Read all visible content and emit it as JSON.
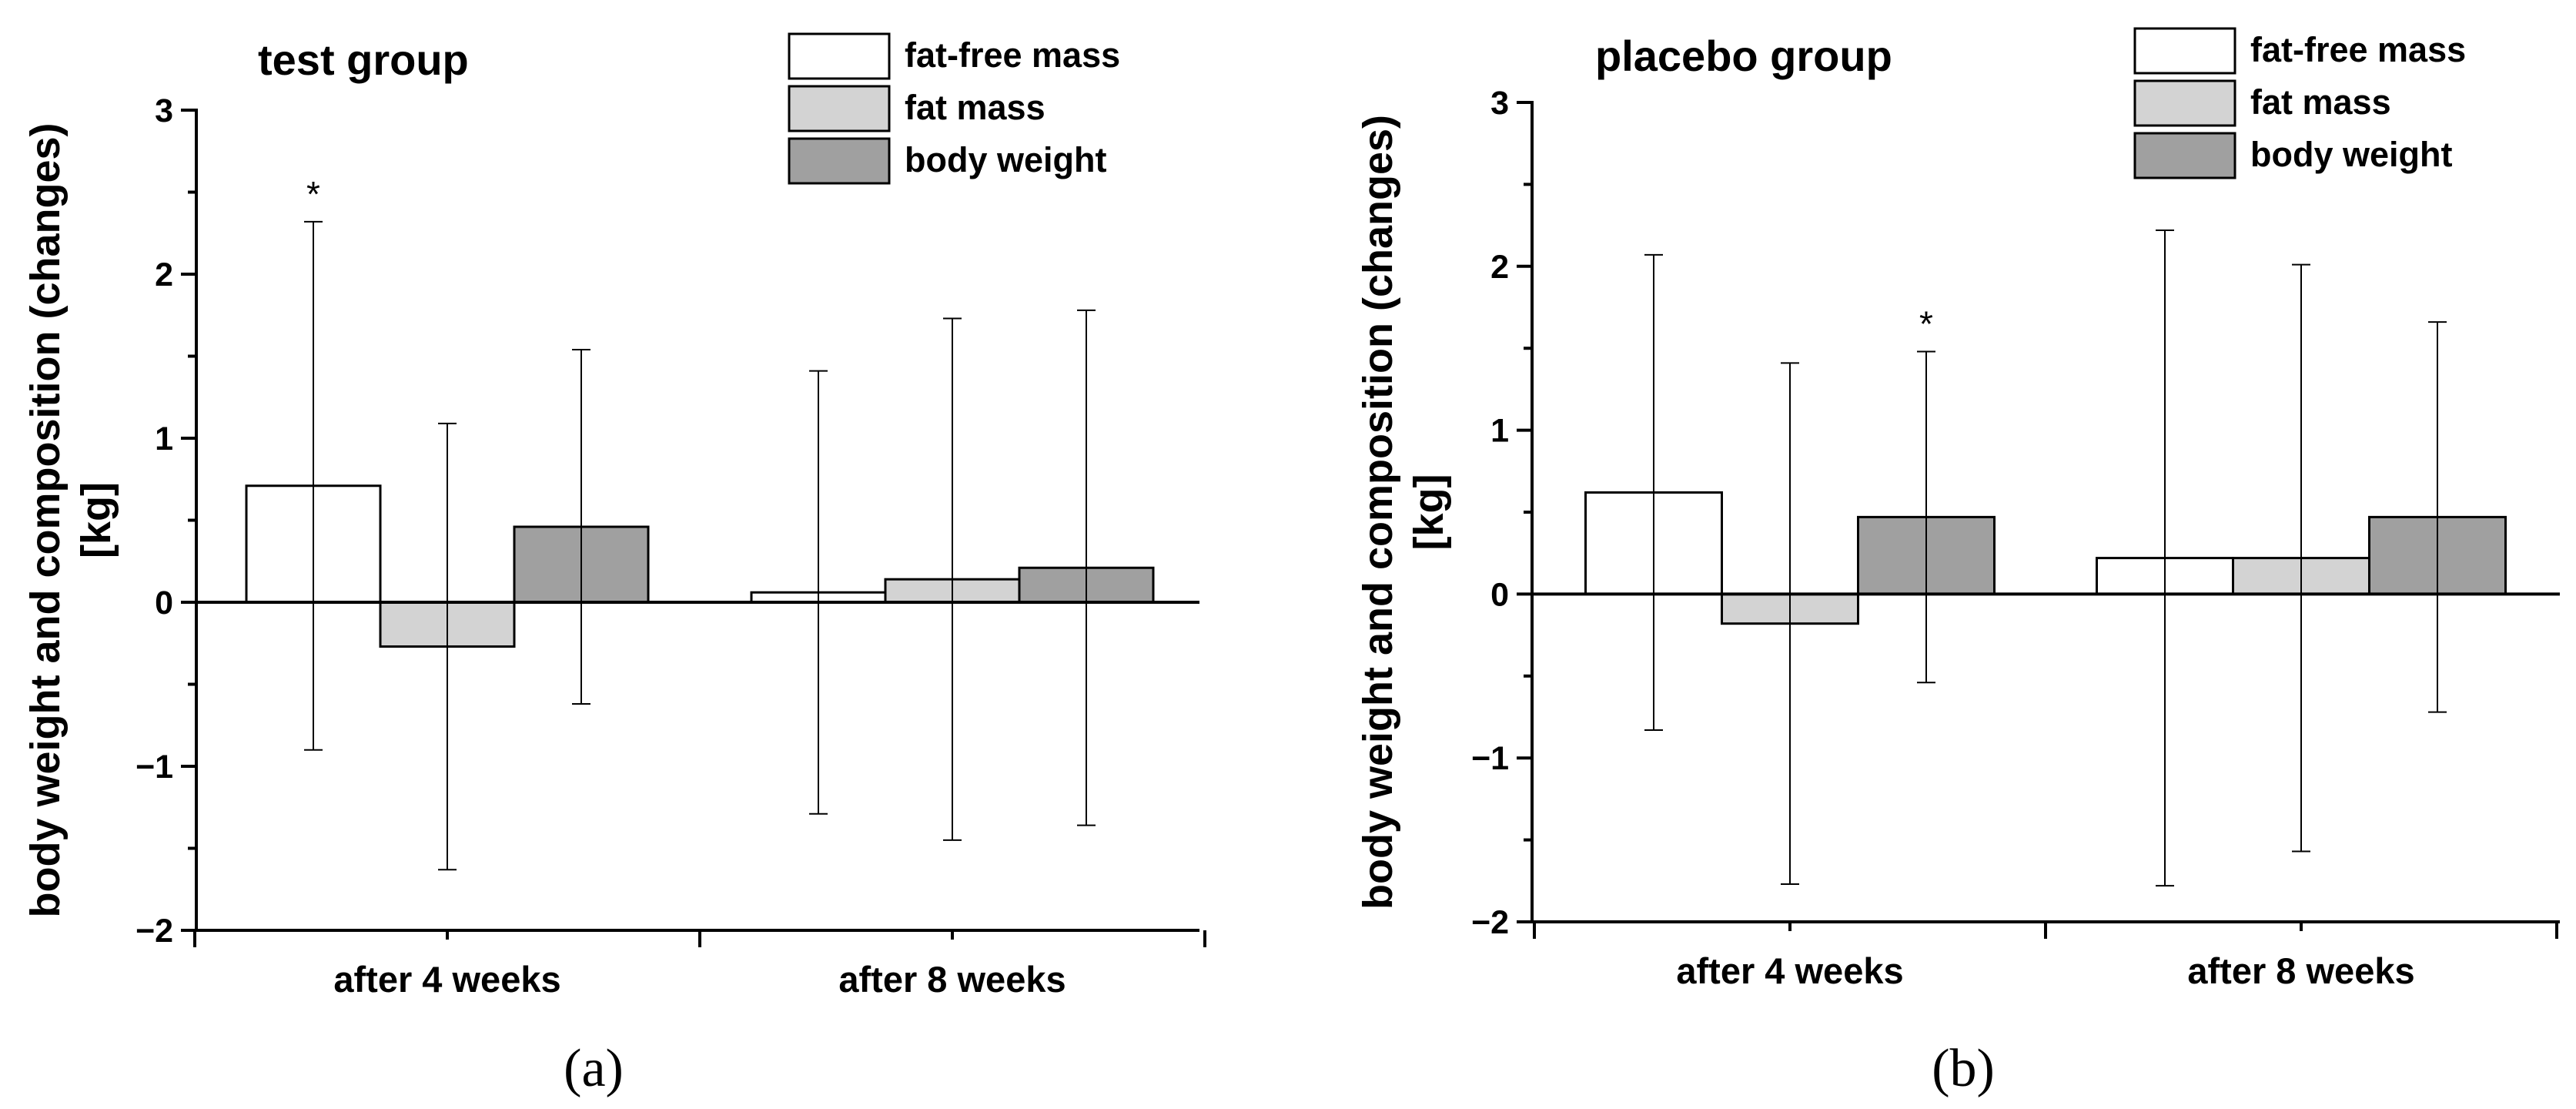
{
  "chart_data": [
    {
      "type": "bar",
      "panel": "(a)",
      "title": "test group",
      "ylabel": "body weight and composition (changes) [kg]",
      "ylabel_lines": [
        "body weight and composition (changes)",
        "[kg]"
      ],
      "ylim": [
        -2,
        3
      ],
      "yticks": [
        -2,
        -1,
        0,
        1,
        2,
        3
      ],
      "ytick_labels": [
        "−2",
        "−1",
        "0",
        "1",
        "2",
        "3"
      ],
      "categories": [
        "after 4 weeks",
        "after 8 weeks"
      ],
      "series": [
        {
          "name": "fat-free mass",
          "color": "#ffffff",
          "values": [
            0.71,
            0.06
          ],
          "error": [
            1.61,
            1.35
          ],
          "significant": [
            true,
            false
          ]
        },
        {
          "name": "fat mass",
          "color": "#d3d3d3",
          "values": [
            -0.27,
            0.14
          ],
          "error": [
            1.36,
            1.59
          ],
          "significant": [
            false,
            false
          ]
        },
        {
          "name": "body weight",
          "color": "#a0a0a0",
          "values": [
            0.46,
            0.21
          ],
          "error": [
            1.08,
            1.57
          ],
          "significant": [
            false,
            false
          ]
        }
      ],
      "significance_marker": "*"
    },
    {
      "type": "bar",
      "panel": "(b)",
      "title": "placebo group",
      "ylabel": "body weight and composition (changes) [kg]",
      "ylabel_lines": [
        "body weight and composition (changes)",
        "[kg]"
      ],
      "ylim": [
        -2,
        3
      ],
      "yticks": [
        -2,
        -1,
        0,
        1,
        2,
        3
      ],
      "ytick_labels": [
        "−2",
        "−1",
        "0",
        "1",
        "2",
        "3"
      ],
      "categories": [
        "after 4 weeks",
        "after 8 weeks"
      ],
      "series": [
        {
          "name": "fat-free mass",
          "color": "#ffffff",
          "values": [
            0.62,
            0.22
          ],
          "error": [
            1.45,
            2.0
          ],
          "significant": [
            false,
            false
          ]
        },
        {
          "name": "fat mass",
          "color": "#d3d3d3",
          "values": [
            -0.18,
            0.22
          ],
          "error": [
            1.59,
            1.79
          ],
          "significant": [
            false,
            false
          ]
        },
        {
          "name": "body weight",
          "color": "#a0a0a0",
          "values": [
            0.47,
            0.47
          ],
          "error": [
            1.01,
            1.19
          ],
          "significant": [
            true,
            false
          ]
        }
      ],
      "significance_marker": "*"
    }
  ]
}
